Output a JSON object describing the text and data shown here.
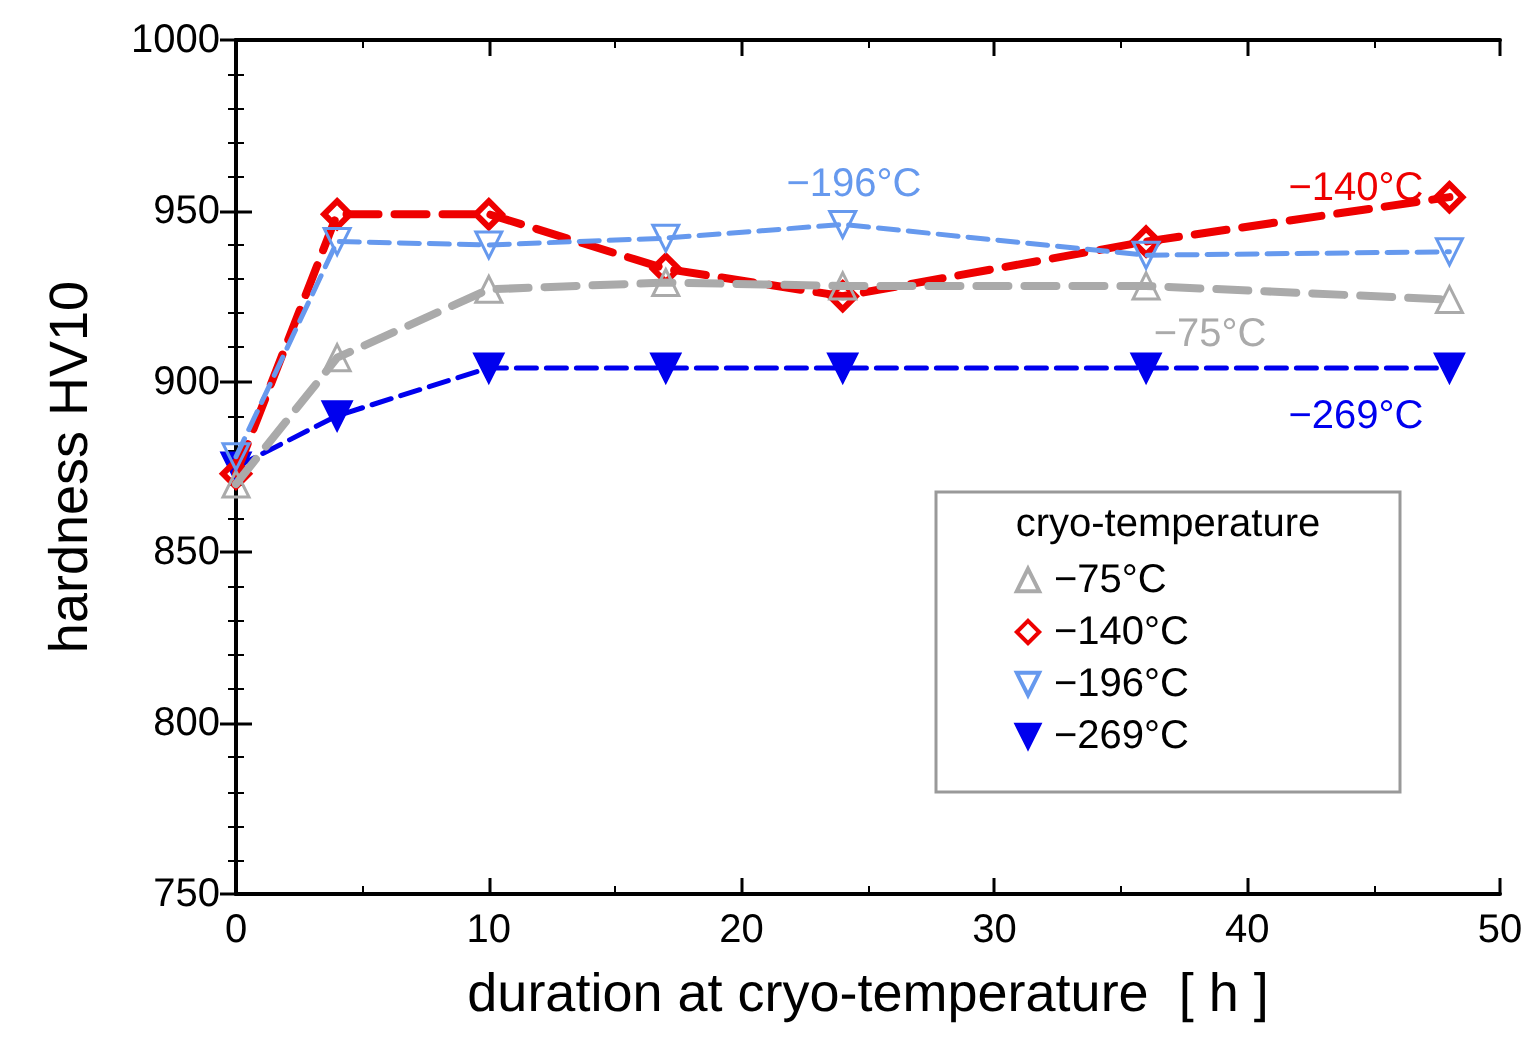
{
  "chart_data": {
    "type": "line",
    "xlabel": "duration at cryo-temperature  [ h ]",
    "ylabel": "hardness HV10",
    "legend_title": "cryo-temperature",
    "legend": "right",
    "line_style": "dashed",
    "grid": false,
    "x": [
      0,
      4,
      10,
      17,
      24,
      36,
      48
    ],
    "xlim": [
      0,
      50
    ],
    "xticks": [
      0,
      10,
      20,
      30,
      40,
      50
    ],
    "ylim": [
      750,
      1000
    ],
    "yticks": [
      750,
      800,
      850,
      900,
      950,
      1000
    ],
    "series": [
      {
        "name": "−75°C",
        "color": "#aaaaaa",
        "marker": "triangle",
        "values": [
          870,
          907,
          927,
          929,
          928,
          928,
          924
        ]
      },
      {
        "name": "−140°C",
        "color": "#ee0000",
        "marker": "diamond",
        "values": [
          873,
          949,
          949,
          933,
          925,
          941,
          954
        ]
      },
      {
        "name": "−196°C",
        "color": "#6699ee",
        "marker": "triangle-down",
        "values": [
          878,
          941,
          940,
          942,
          946,
          937,
          938
        ]
      },
      {
        "name": "−269°C",
        "color": "#0000ee",
        "marker": "triangle-down-filled",
        "values": [
          875,
          890,
          904,
          904,
          904,
          904,
          904
        ]
      }
    ],
    "annotations": [
      "−75°C",
      "−140°C",
      "−196°C",
      "−269°C"
    ]
  }
}
